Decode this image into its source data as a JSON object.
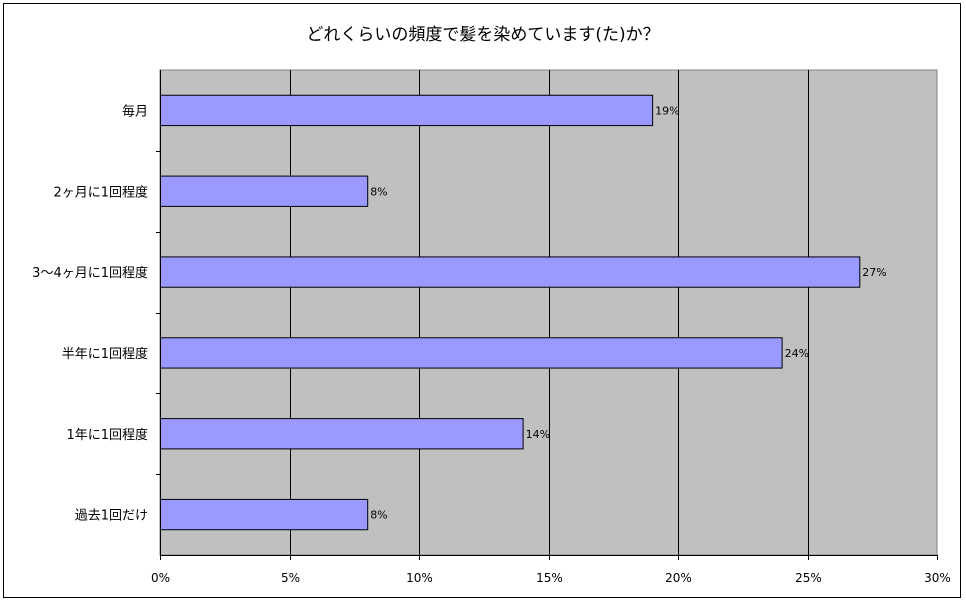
{
  "chart_data": {
    "type": "bar",
    "orientation": "horizontal",
    "title": "どれくらいの頻度で髪を染めています(た)か？",
    "categories": [
      "毎月",
      "2ヶ月に1回程度",
      "3〜4ヶ月に1回程度",
      "半年に1回程度",
      "1年に1回程度",
      "過去1回だけ"
    ],
    "values": [
      19,
      8,
      27,
      24,
      14,
      8
    ],
    "value_labels": [
      "19%",
      "8%",
      "27%",
      "24%",
      "14%",
      "8%"
    ],
    "x_ticks": [
      "0%",
      "5%",
      "10%",
      "15%",
      "20%",
      "25%",
      "30%"
    ],
    "xlim": [
      0,
      30
    ],
    "grid": true,
    "colors": {
      "bar": "#9999ff",
      "plot_bg": "#c0c0c0",
      "grid": "#000000"
    }
  }
}
